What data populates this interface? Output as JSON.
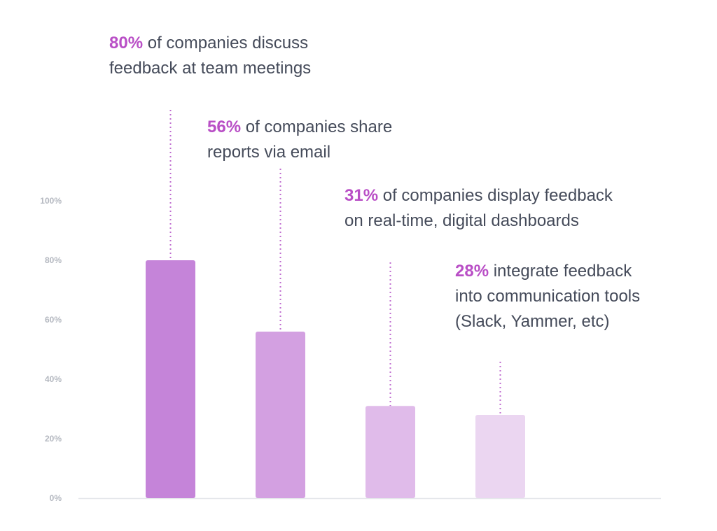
{
  "chart_data": {
    "type": "bar",
    "categories": [
      "discuss feedback at team meetings",
      "share reports via email",
      "display feedback on real-time, digital dashboards",
      "integrate feedback into communication tools"
    ],
    "values": [
      80,
      56,
      31,
      28
    ],
    "ylim": [
      0,
      100
    ],
    "y_ticks": [
      "0%",
      "20%",
      "40%",
      "60%",
      "80%",
      "100%"
    ],
    "grid": false,
    "bar_colors": [
      "#c584d9",
      "#d3a0e1",
      "#e0bbea",
      "#ebd6f1"
    ],
    "leader_color": "#c06fd0",
    "annotations": [
      {
        "pct": "80%",
        "line1": " of companies discuss",
        "line2": "feedback at team meetings",
        "line3": ""
      },
      {
        "pct": "56%",
        "line1": " of companies share",
        "line2": "reports via email",
        "line3": ""
      },
      {
        "pct": "31%",
        "line1": " of companies display feedback",
        "line2": "on real-time, digital dashboards",
        "line3": ""
      },
      {
        "pct": "28%",
        "line1": " integrate feedback",
        "line2": "into communication tools",
        "line3": "(Slack, Yammer, etc)"
      }
    ]
  },
  "colors": {
    "accent": "#b94fc6",
    "text": "#454b5a",
    "tick": "#b4b8c0",
    "axis": "#e4e6ea"
  }
}
